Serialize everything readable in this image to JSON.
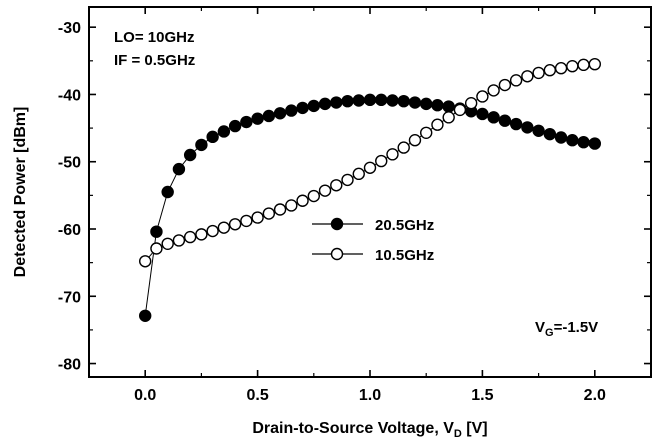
{
  "chart_data": {
    "type": "scatter",
    "xlabel": "Drain-to-Source Voltage, V",
    "xlabel_sub": "D",
    "xlabel_unit": " [V]",
    "ylabel": "Detected Power [dBm]",
    "xlim": [
      -0.25,
      2.25
    ],
    "ylim": [
      -82,
      -27
    ],
    "xticks": [
      0.0,
      0.5,
      1.0,
      1.5,
      2.0
    ],
    "xtick_labels": [
      "0.0",
      "0.5",
      "1.0",
      "1.5",
      "2.0"
    ],
    "yticks": [
      -30,
      -40,
      -50,
      -60,
      -70,
      -80
    ],
    "ytick_labels": [
      "-30",
      "-40",
      "-50",
      "-60",
      "-70",
      "-80"
    ],
    "grid": false,
    "legend_position": "center",
    "annotations": {
      "lo": "LO= 10GHz",
      "if": "IF  = 0.5GHz",
      "vg_prefix": "V",
      "vg_sub": "G",
      "vg_value": "=-1.5V"
    },
    "x": [
      0.0,
      0.05,
      0.1,
      0.15,
      0.2,
      0.25,
      0.3,
      0.35,
      0.4,
      0.45,
      0.5,
      0.55,
      0.6,
      0.65,
      0.7,
      0.75,
      0.8,
      0.85,
      0.9,
      0.95,
      1.0,
      1.05,
      1.1,
      1.15,
      1.2,
      1.25,
      1.3,
      1.35,
      1.4,
      1.45,
      1.5,
      1.55,
      1.6,
      1.65,
      1.7,
      1.75,
      1.8,
      1.85,
      1.9,
      1.95,
      2.0
    ],
    "series": [
      {
        "name": "20.5GHz",
        "marker": "filled-circle",
        "values": [
          -72.9,
          -60.4,
          -54.5,
          -51.1,
          -49.0,
          -47.5,
          -46.3,
          -45.5,
          -44.7,
          -44.1,
          -43.6,
          -43.2,
          -42.8,
          -42.4,
          -42.0,
          -41.7,
          -41.4,
          -41.2,
          -41.0,
          -40.9,
          -40.8,
          -40.8,
          -40.9,
          -41.0,
          -41.2,
          -41.4,
          -41.6,
          -41.8,
          -42.1,
          -42.5,
          -42.9,
          -43.4,
          -43.9,
          -44.4,
          -44.9,
          -45.4,
          -45.9,
          -46.4,
          -46.8,
          -47.1,
          -47.3
        ]
      },
      {
        "name": "10.5GHz",
        "marker": "open-circle",
        "values": [
          -64.8,
          -62.9,
          -62.2,
          -61.7,
          -61.2,
          -60.8,
          -60.3,
          -59.8,
          -59.3,
          -58.8,
          -58.3,
          -57.7,
          -57.1,
          -56.5,
          -55.8,
          -55.1,
          -54.3,
          -53.5,
          -52.7,
          -51.8,
          -50.9,
          -49.9,
          -48.9,
          -47.9,
          -46.8,
          -45.7,
          -44.5,
          -43.4,
          -42.3,
          -41.3,
          -40.3,
          -39.4,
          -38.6,
          -37.9,
          -37.3,
          -36.8,
          -36.4,
          -36.1,
          -35.8,
          -35.6,
          -35.5
        ]
      }
    ]
  }
}
